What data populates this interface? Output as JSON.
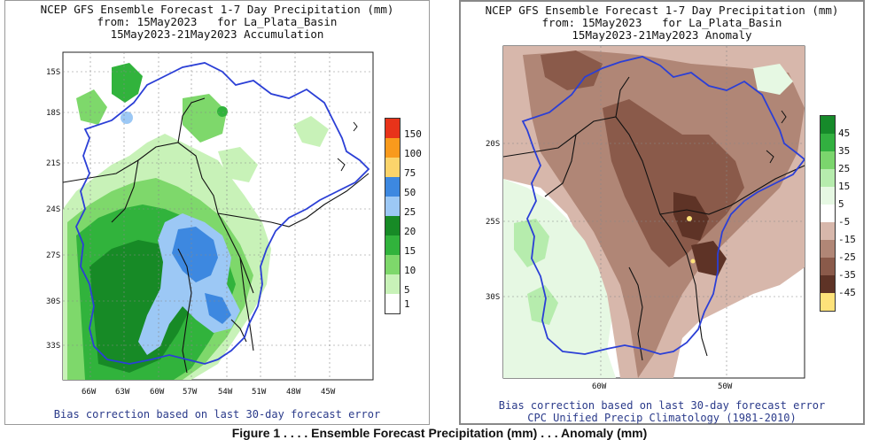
{
  "left_panel": {
    "title_lines": [
      "NCEP GFS Ensemble Forecast 1-7 Day Precipitation (mm)",
      "from: 15May2023   for La_Plata_Basin",
      "15May2023-21May2023 Accumulation"
    ],
    "y_labels": [
      "15S",
      "18S",
      "21S",
      "24S",
      "27S",
      "30S",
      "33S"
    ],
    "x_labels": [
      "66W",
      "63W",
      "60W",
      "57W",
      "54W",
      "51W",
      "48W",
      "45W"
    ],
    "colorbar": {
      "labels": [
        "150",
        "100",
        "75",
        "50",
        "25",
        "20",
        "15",
        "10",
        "5",
        "1"
      ],
      "colors": [
        "#e8331a",
        "#f99a1c",
        "#fbd46b",
        "#3d88e0",
        "#9cc8f5",
        "#178a26",
        "#31b33c",
        "#7ed86b",
        "#c8f2b8",
        "#ffffff"
      ]
    },
    "footnote": "Bias correction based on last 30-day forecast error"
  },
  "right_panel": {
    "title_lines": [
      "NCEP GFS Ensemble Forecast 1-7 Day Precipitation (mm)",
      "from: 15May2023   for La_Plata_Basin",
      "15May2023-21May2023 Anomaly"
    ],
    "y_labels": [
      "20S",
      "25S",
      "30S"
    ],
    "x_labels": [
      "60W",
      "50W"
    ],
    "colorbar": {
      "labels": [
        "45",
        "35",
        "25",
        "15",
        "5",
        "-5",
        "-15",
        "-25",
        "-35",
        "-45"
      ],
      "colors": [
        "#168a2a",
        "#32b040",
        "#7bd56d",
        "#b6ecad",
        "#e6f8e3",
        "#ffffff",
        "#d7b7ab",
        "#b08676",
        "#8a5a4a",
        "#5e3326",
        "#fde27a"
      ]
    },
    "footnote_lines": [
      "Bias correction based on last 30-day forecast error",
      "CPC Unified Precip Climatology (1981-2010)"
    ]
  },
  "caption": "Figure 1 . . . . Ensemble Forecast Precipitation (mm) . . . Anomaly (mm)",
  "colors": {
    "basin_outline": "#2b3fd6",
    "border": "#111111",
    "grid": "#888888",
    "footnote": "#2a3a8a"
  }
}
